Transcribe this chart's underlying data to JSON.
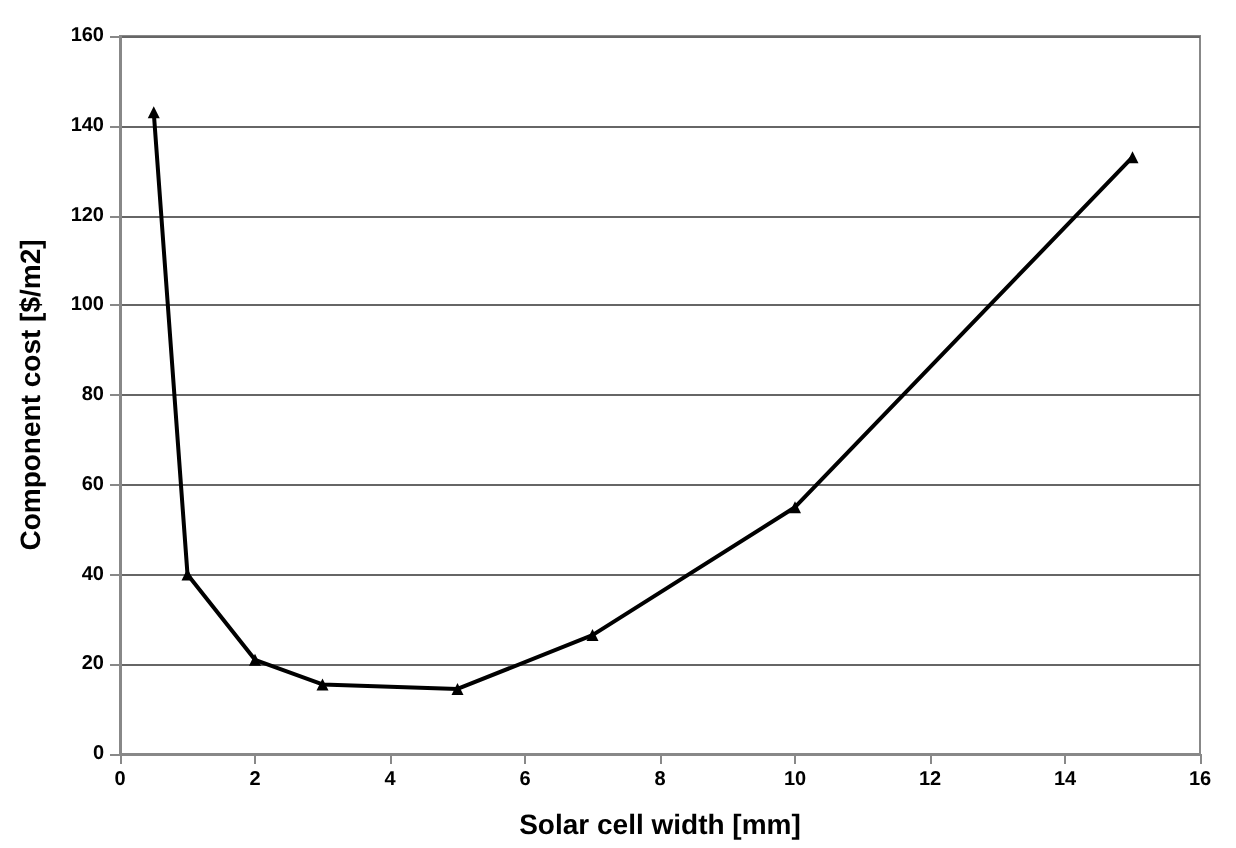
{
  "chart_data": {
    "type": "line",
    "xlabel": "Solar cell width [mm]",
    "ylabel": "Component cost [$/m2]",
    "x": [
      0.5,
      1,
      2,
      3,
      5,
      7,
      10,
      15
    ],
    "series": [
      {
        "color": "#000000",
        "values": [
          143,
          40,
          21,
          15.5,
          14.5,
          26.5,
          55,
          133
        ]
      }
    ],
    "xlim": [
      0,
      16
    ],
    "xticks": [
      0,
      2,
      4,
      6,
      8,
      10,
      12,
      14,
      16
    ],
    "ylim": [
      0,
      160
    ],
    "yticks": [
      0,
      20,
      40,
      60,
      80,
      100,
      120,
      140,
      160
    ],
    "grid": "y",
    "marker": "triangle",
    "line_style": "solid"
  }
}
